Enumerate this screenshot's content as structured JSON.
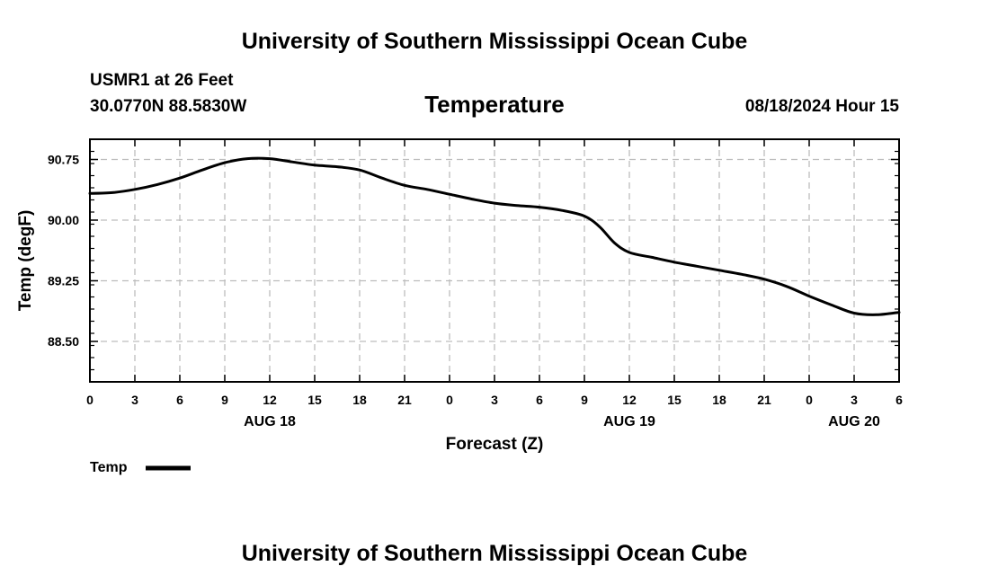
{
  "header": {
    "title": "University of Southern Mississippi Ocean Cube",
    "station": "USMR1 at 26 Feet",
    "location": "30.0770N  88.5830W",
    "variable": "Temperature",
    "issued": "08/18/2024 Hour 15",
    "footer_title": "University of Southern Mississippi Ocean Cube"
  },
  "chart_data": {
    "type": "line",
    "title": "Temperature",
    "xlabel": "Forecast (Z)",
    "ylabel": "Temp (degF)",
    "ylim": [
      88.0,
      91.0
    ],
    "xlim": [
      0,
      54
    ],
    "x_units": "hours since AUG 18 00Z",
    "yticks": [
      88.5,
      89.25,
      90.0,
      90.75
    ],
    "ytick_labels": [
      "88.50",
      "89.25",
      "90.00",
      "90.75"
    ],
    "xtick_labels": [
      "0",
      "3",
      "6",
      "9",
      "12",
      "15",
      "18",
      "21",
      "0",
      "3",
      "6",
      "9",
      "12",
      "15",
      "18",
      "21",
      "0",
      "3",
      "6"
    ],
    "date_labels": [
      {
        "label": "AUG 18",
        "hour": 12
      },
      {
        "label": "AUG 19",
        "hour": 36
      },
      {
        "label": "AUG 20",
        "hour": 51
      }
    ],
    "grid": true,
    "legend": {
      "label": "Temp",
      "position": "bottom-left"
    },
    "series": [
      {
        "name": "Temp",
        "color": "#000000",
        "x": [
          0,
          1.5,
          3,
          4.5,
          6,
          7.5,
          9,
          10.5,
          12,
          13.5,
          15,
          16.5,
          18,
          19.5,
          21,
          22.5,
          24,
          25.5,
          27,
          28.5,
          30,
          31.5,
          33,
          34,
          35,
          36,
          37.5,
          39,
          40.5,
          42,
          43.5,
          45,
          46.5,
          48,
          49.5,
          51,
          52.5,
          54
        ],
        "values": [
          90.33,
          90.34,
          90.38,
          90.44,
          90.52,
          90.62,
          90.71,
          90.76,
          90.76,
          90.72,
          90.68,
          90.66,
          90.62,
          90.52,
          90.43,
          90.38,
          90.32,
          90.26,
          90.21,
          90.18,
          90.16,
          90.12,
          90.05,
          89.92,
          89.72,
          89.6,
          89.54,
          89.48,
          89.43,
          89.38,
          89.33,
          89.27,
          89.18,
          89.06,
          88.95,
          88.85,
          88.83,
          88.86
        ]
      }
    ]
  }
}
